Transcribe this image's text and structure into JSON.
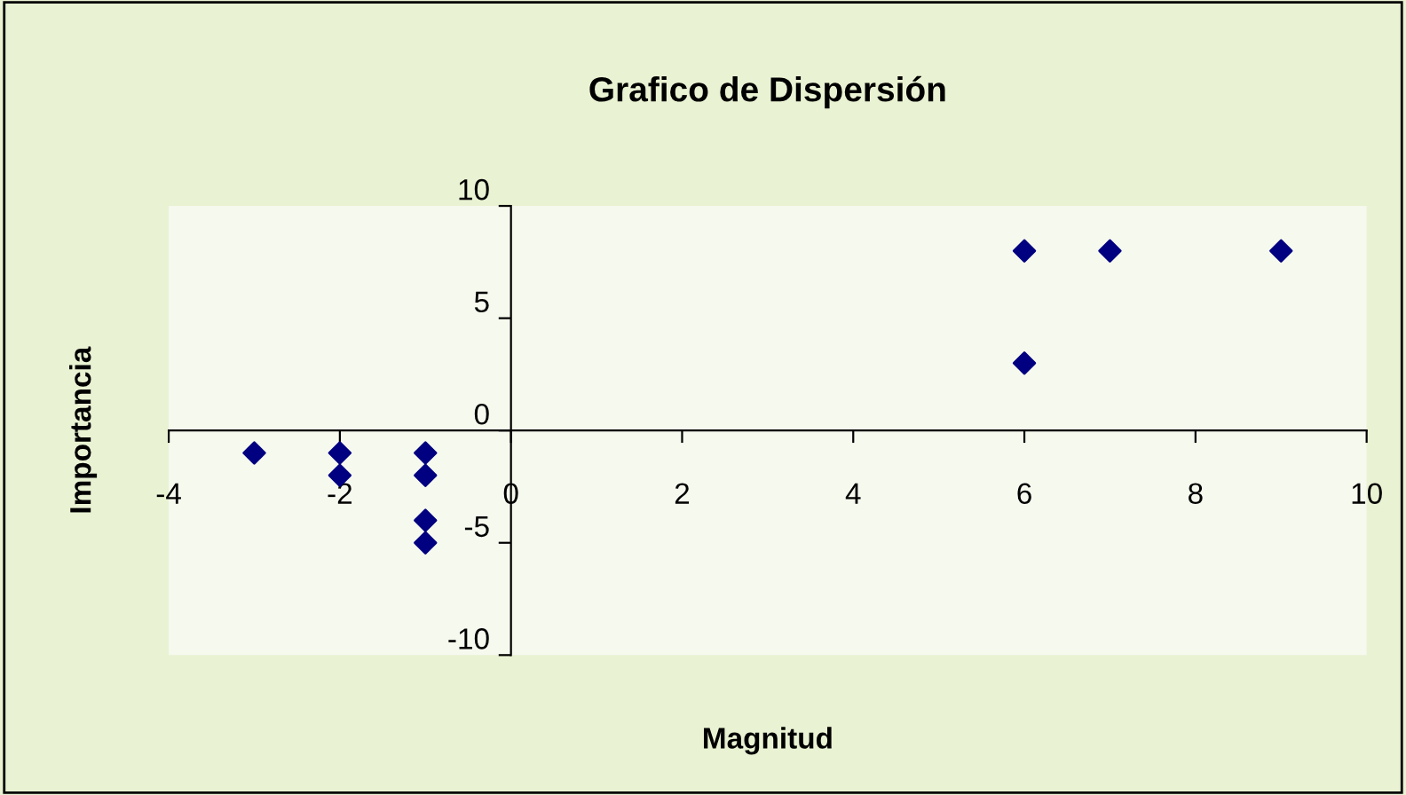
{
  "chart_data": {
    "type": "scatter",
    "title": "Grafico de Dispersión",
    "xlabel": "Magnitud",
    "ylabel": "Importancia",
    "x": [
      -3,
      -2,
      -2,
      -1,
      -1,
      -1,
      -1,
      6,
      6,
      7,
      9
    ],
    "series": [
      {
        "color": "#000080",
        "values": [
          -1,
          -1,
          -2,
          -1,
          -2,
          -4,
          -5,
          8,
          3,
          8,
          8
        ]
      }
    ],
    "xlim": [
      -4,
      10
    ],
    "xticks": [
      -4,
      -2,
      0,
      2,
      4,
      6,
      8,
      10
    ],
    "ylim": [
      -10,
      10
    ],
    "yticks": [
      -10,
      -5,
      0,
      5,
      10
    ],
    "marker": "diamond",
    "grid": false,
    "legend": false
  }
}
